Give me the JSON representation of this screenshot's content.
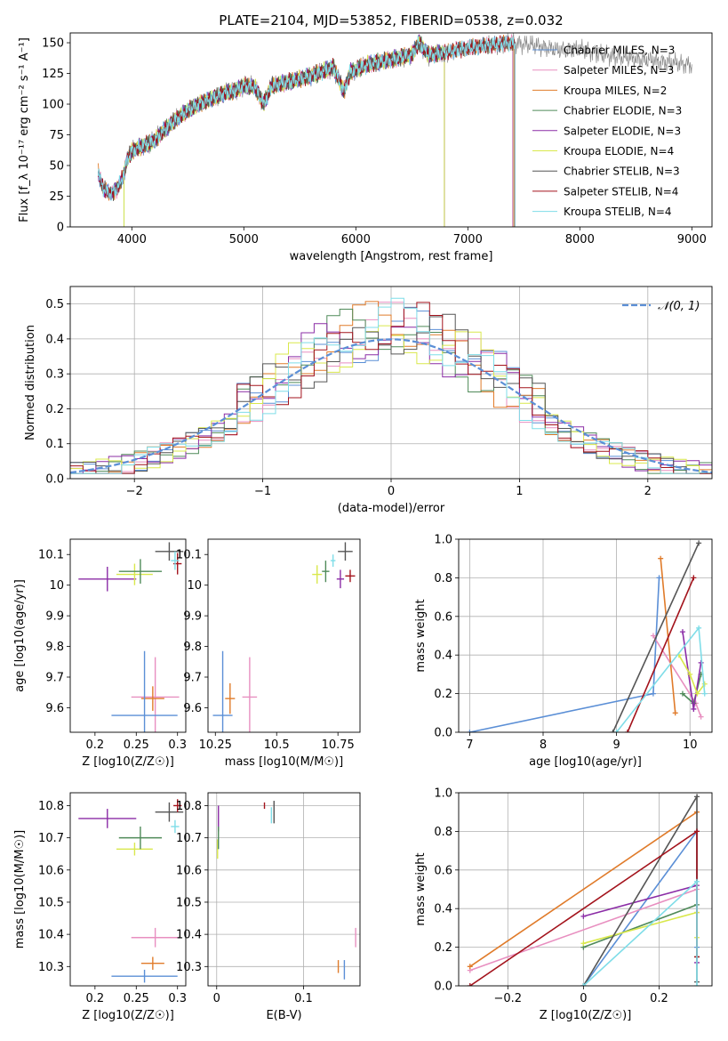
{
  "chart_data": [
    {
      "id": "spectrum",
      "type": "line",
      "title": "PLATE=2104, MJD=53852, FIBERID=0538, z=0.032",
      "xlabel": "wavelength [Angstrom, rest frame]",
      "ylabel": "Flux [f_λ 10⁻¹⁷ erg cm⁻² s⁻¹ A⁻¹]",
      "xlim": [
        3450,
        9180
      ],
      "ylim": [
        0,
        158
      ],
      "xticks": [
        4000,
        5000,
        6000,
        7000,
        8000,
        9000
      ],
      "yticks": [
        0,
        25,
        50,
        75,
        100,
        125,
        150
      ],
      "grid": false,
      "legend_position": "top-right",
      "data_envelope": [
        [
          3700,
          45
        ],
        [
          3740,
          32
        ],
        [
          3800,
          27
        ],
        [
          3860,
          30
        ],
        [
          3900,
          36
        ],
        [
          3930,
          44
        ],
        [
          3960,
          55
        ],
        [
          4000,
          62
        ],
        [
          4100,
          66
        ],
        [
          4200,
          70
        ],
        [
          4300,
          80
        ],
        [
          4400,
          88
        ],
        [
          4500,
          95
        ],
        [
          4600,
          100
        ],
        [
          4700,
          104
        ],
        [
          4800,
          108
        ],
        [
          4861,
          110
        ],
        [
          4900,
          110
        ],
        [
          5000,
          115
        ],
        [
          5100,
          114
        ],
        [
          5175,
          100
        ],
        [
          5250,
          115
        ],
        [
          5400,
          118
        ],
        [
          5600,
          123
        ],
        [
          5800,
          130
        ],
        [
          5893,
          110
        ],
        [
          5950,
          126
        ],
        [
          6100,
          132
        ],
        [
          6300,
          136
        ],
        [
          6500,
          140
        ],
        [
          6563,
          150
        ],
        [
          6650,
          140
        ],
        [
          6800,
          142
        ],
        [
          7000,
          146
        ],
        [
          7200,
          148
        ],
        [
          7400,
          150
        ],
        [
          7600,
          148
        ],
        [
          7800,
          144
        ],
        [
          8000,
          145
        ],
        [
          8200,
          140
        ],
        [
          8400,
          138
        ],
        [
          8600,
          136
        ],
        [
          8800,
          134
        ],
        [
          9000,
          132
        ]
      ],
      "series": [
        {
          "name": "Chabrier MILES, N_SSP=3",
          "color": "#5b8fd6",
          "xmax": 7400
        },
        {
          "name": "Salpeter MILES, N_SSP=3",
          "color": "#e88fc0",
          "xmax": 7400
        },
        {
          "name": "Kroupa MILES, N_SSP=2",
          "color": "#e07b2a",
          "xmax": 7410
        },
        {
          "name": "Chabrier ELODIE, N_SSP=3",
          "color": "#4f8a59",
          "xmax": 6790
        },
        {
          "name": "Salpeter ELODIE, N_SSP=3",
          "color": "#8b2ca6",
          "xmax": 6790
        },
        {
          "name": "Kroupa ELODIE, N_SSP=4",
          "color": "#d9e84c",
          "xmax": 6790
        },
        {
          "name": "Chabrier STELIB, N_SSP=3",
          "color": "#555555",
          "xmax": 7420
        },
        {
          "name": "Salpeter STELIB, N_SSP=4",
          "color": "#a3131c",
          "xmax": 7420
        },
        {
          "name": "Kroupa STELIB, N_SSP=4",
          "color": "#7fdde8",
          "xmax": 7420
        }
      ]
    },
    {
      "id": "residuals",
      "type": "histogram",
      "xlabel": "(data-model)/error",
      "ylabel": "Normed distribution",
      "xlim": [
        -2.5,
        2.5
      ],
      "ylim": [
        0,
        0.55
      ],
      "xticks": [
        -2,
        -1,
        0,
        1,
        2
      ],
      "yticks": [
        0.0,
        0.1,
        0.2,
        0.3,
        0.4,
        0.5
      ],
      "grid": true,
      "bin_width": 0.1,
      "legend": "𝒩(0, 1)",
      "legend_position": "top-right",
      "reference_curve": {
        "name": "N(0,1)",
        "mean": 0,
        "sigma": 1,
        "color": "#5b8fd6"
      },
      "histogram_series_colors": [
        "#5b8fd6",
        "#e88fc0",
        "#e07b2a",
        "#4f8a59",
        "#8b2ca6",
        "#d9e84c",
        "#555555",
        "#a3131c",
        "#7fdde8"
      ]
    },
    {
      "id": "age-vs-Z",
      "type": "scatter",
      "xlabel": "Z [log10(Z/Z☉)]",
      "ylabel": "age [log10(age/yr)]",
      "xlim": [
        0.17,
        0.31
      ],
      "ylim": [
        9.52,
        10.15
      ],
      "xticks": [
        0.2,
        0.25,
        0.3
      ],
      "yticks": [
        9.6,
        9.7,
        9.8,
        9.9,
        10.0,
        10.1
      ],
      "grid": false,
      "points": [
        {
          "x": 0.215,
          "y": 10.02,
          "xerr": 0.035,
          "yerr": 0.04,
          "color": "#8b2ca6"
        },
        {
          "x": 0.248,
          "y": 10.035,
          "xerr": 0.022,
          "yerr": 0.035,
          "color": "#d9e84c"
        },
        {
          "x": 0.255,
          "y": 10.045,
          "xerr": 0.026,
          "yerr": 0.04,
          "color": "#4f8a59"
        },
        {
          "x": 0.29,
          "y": 10.11,
          "xerr": 0.017,
          "yerr": 0.03,
          "color": "#555555"
        },
        {
          "x": 0.3,
          "y": 10.07,
          "xerr": 0.005,
          "yerr": 0.035,
          "color": "#a3131c"
        },
        {
          "x": 0.297,
          "y": 10.08,
          "xerr": 0.005,
          "yerr": 0.03,
          "color": "#7fdde8"
        },
        {
          "x": 0.273,
          "y": 9.635,
          "xerr": 0.029,
          "yerr": 0.13,
          "color": "#e88fc0"
        },
        {
          "x": 0.27,
          "y": 9.63,
          "xerr": 0.014,
          "yerr": 0.04,
          "color": "#e07b2a"
        },
        {
          "x": 0.26,
          "y": 9.575,
          "xerr": 0.04,
          "yerr": 0.21,
          "color": "#5b8fd6"
        }
      ]
    },
    {
      "id": "age-vs-mass",
      "type": "scatter",
      "xlabel": "mass [log10(M/M☉)]",
      "ylabel": "",
      "xlim": [
        10.22,
        10.84
      ],
      "ylim": [
        9.52,
        10.15
      ],
      "xticks": [
        10.25,
        10.5,
        10.75
      ],
      "yticks": [
        9.6,
        9.7,
        9.8,
        9.9,
        10.0,
        10.1
      ],
      "grid": false,
      "points": [
        {
          "x": 10.665,
          "y": 10.035,
          "xerr": 0.02,
          "yerr": 0.03,
          "color": "#d9e84c"
        },
        {
          "x": 10.7,
          "y": 10.045,
          "xerr": 0.015,
          "yerr": 0.035,
          "color": "#4f8a59"
        },
        {
          "x": 10.76,
          "y": 10.02,
          "xerr": 0.015,
          "yerr": 0.03,
          "color": "#8b2ca6"
        },
        {
          "x": 10.78,
          "y": 10.11,
          "xerr": 0.03,
          "yerr": 0.03,
          "color": "#555555"
        },
        {
          "x": 10.8,
          "y": 10.03,
          "xerr": 0.02,
          "yerr": 0.02,
          "color": "#a3131c"
        },
        {
          "x": 10.73,
          "y": 10.08,
          "xerr": 0.01,
          "yerr": 0.02,
          "color": "#7fdde8"
        },
        {
          "x": 10.39,
          "y": 9.635,
          "xerr": 0.03,
          "yerr": 0.13,
          "color": "#e88fc0"
        },
        {
          "x": 10.31,
          "y": 9.63,
          "xerr": 0.02,
          "yerr": 0.05,
          "color": "#e07b2a"
        },
        {
          "x": 10.28,
          "y": 9.575,
          "xerr": 0.04,
          "yerr": 0.21,
          "color": "#5b8fd6"
        }
      ]
    },
    {
      "id": "massweight-vs-age",
      "type": "line",
      "xlabel": "age [log10(age/yr)]",
      "ylabel": "mass weight",
      "xlim": [
        6.85,
        10.3
      ],
      "ylim": [
        0,
        1.0
      ],
      "xticks": [
        7,
        8,
        9,
        10
      ],
      "yticks": [
        0.0,
        0.2,
        0.4,
        0.6,
        0.8,
        1.0
      ],
      "grid": true,
      "series": [
        {
          "name": "Chabrier MILES",
          "color": "#5b8fd6",
          "x": [
            7.0,
            9.5,
            9.58
          ],
          "y": [
            0.0,
            0.2,
            0.8
          ]
        },
        {
          "name": "Salpeter MILES",
          "color": "#e88fc0",
          "x": [
            9.5,
            10.08,
            10.15
          ],
          "y": [
            0.5,
            0.15,
            0.08
          ]
        },
        {
          "name": "Kroupa MILES",
          "color": "#e07b2a",
          "x": [
            9.6,
            9.8
          ],
          "y": [
            0.9,
            0.1
          ]
        },
        {
          "name": "Chabrier ELODIE",
          "color": "#4f8a59",
          "x": [
            9.9,
            10.05,
            10.15
          ],
          "y": [
            0.2,
            0.15,
            0.3
          ]
        },
        {
          "name": "Salpeter ELODIE",
          "color": "#8b2ca6",
          "x": [
            9.9,
            10.05,
            10.15
          ],
          "y": [
            0.52,
            0.12,
            0.36
          ]
        },
        {
          "name": "Kroupa ELODIE",
          "color": "#d9e84c",
          "x": [
            9.85,
            10.0,
            10.1,
            10.2
          ],
          "y": [
            0.4,
            0.3,
            0.2,
            0.25
          ]
        },
        {
          "name": "Chabrier STELIB",
          "color": "#555555",
          "x": [
            8.95,
            10.12
          ],
          "y": [
            0.0,
            0.98
          ]
        },
        {
          "name": "Salpeter STELIB",
          "color": "#a3131c",
          "x": [
            9.15,
            10.05
          ],
          "y": [
            0.0,
            0.8
          ]
        },
        {
          "name": "Kroupa STELIB",
          "color": "#7fdde8",
          "x": [
            9.0,
            10.12,
            10.2
          ],
          "y": [
            0.0,
            0.54,
            0.2
          ]
        }
      ]
    },
    {
      "id": "mass-vs-Z",
      "type": "scatter",
      "xlabel": "Z [log10(Z/Z☉)]",
      "ylabel": "mass [log10(M/M☉)]",
      "xlim": [
        0.17,
        0.31
      ],
      "ylim": [
        10.24,
        10.84
      ],
      "xticks": [
        0.2,
        0.25,
        0.3
      ],
      "yticks": [
        10.3,
        10.4,
        10.5,
        10.6,
        10.7,
        10.8
      ],
      "grid": false,
      "points": [
        {
          "x": 0.215,
          "y": 10.76,
          "xerr": 0.035,
          "yerr": 0.03,
          "color": "#8b2ca6"
        },
        {
          "x": 0.248,
          "y": 10.665,
          "xerr": 0.022,
          "yerr": 0.02,
          "color": "#d9e84c"
        },
        {
          "x": 0.255,
          "y": 10.7,
          "xerr": 0.026,
          "yerr": 0.035,
          "color": "#4f8a59"
        },
        {
          "x": 0.29,
          "y": 10.78,
          "xerr": 0.017,
          "yerr": 0.03,
          "color": "#555555"
        },
        {
          "x": 0.3,
          "y": 10.8,
          "xerr": 0.005,
          "yerr": 0.02,
          "color": "#a3131c"
        },
        {
          "x": 0.297,
          "y": 10.735,
          "xerr": 0.005,
          "yerr": 0.02,
          "color": "#7fdde8"
        },
        {
          "x": 0.273,
          "y": 10.39,
          "xerr": 0.029,
          "yerr": 0.03,
          "color": "#e88fc0"
        },
        {
          "x": 0.27,
          "y": 10.31,
          "xerr": 0.014,
          "yerr": 0.02,
          "color": "#e07b2a"
        },
        {
          "x": 0.26,
          "y": 10.27,
          "xerr": 0.04,
          "yerr": 0.02,
          "color": "#5b8fd6"
        }
      ]
    },
    {
      "id": "mass-vs-EBV",
      "type": "scatter",
      "xlabel": "E(B-V)",
      "ylabel": "",
      "xlim": [
        -0.01,
        0.165
      ],
      "ylim": [
        10.24,
        10.84
      ],
      "xticks": [
        0.0,
        0.1
      ],
      "yticks": [
        10.3,
        10.4,
        10.5,
        10.6,
        10.7,
        10.8
      ],
      "grid": true,
      "points": [
        {
          "x": 0.002,
          "y": 10.76,
          "yerr": 0.04,
          "color": "#8b2ca6"
        },
        {
          "x": 0.001,
          "y": 10.665,
          "yerr": 0.03,
          "color": "#d9e84c"
        },
        {
          "x": 0.002,
          "y": 10.7,
          "yerr": 0.035,
          "color": "#4f8a59"
        },
        {
          "x": 0.066,
          "y": 10.78,
          "yerr": 0.035,
          "color": "#555555"
        },
        {
          "x": 0.055,
          "y": 10.8,
          "yerr": 0.01,
          "color": "#a3131c"
        },
        {
          "x": 0.063,
          "y": 10.77,
          "yerr": 0.025,
          "color": "#7fdde8"
        },
        {
          "x": 0.16,
          "y": 10.39,
          "yerr": 0.03,
          "color": "#e88fc0"
        },
        {
          "x": 0.14,
          "y": 10.3,
          "yerr": 0.02,
          "color": "#e07b2a"
        },
        {
          "x": 0.147,
          "y": 10.29,
          "yerr": 0.03,
          "color": "#5b8fd6"
        }
      ]
    },
    {
      "id": "massweight-vs-Z",
      "type": "line",
      "xlabel": "Z [log10(Z/Z☉)]",
      "ylabel": "mass weight",
      "xlim": [
        -0.33,
        0.34
      ],
      "ylim": [
        0,
        1.0
      ],
      "xticks": [
        -0.2,
        0.0,
        0.2
      ],
      "yticks": [
        0.0,
        0.2,
        0.4,
        0.6,
        0.8,
        1.0
      ],
      "grid": true,
      "series": [
        {
          "name": "Chabrier MILES",
          "color": "#5b8fd6",
          "x": [
            0.0,
            0.3,
            0.3
          ],
          "y": [
            0.0,
            0.8,
            0.2
          ]
        },
        {
          "name": "Salpeter MILES",
          "color": "#e88fc0",
          "x": [
            -0.3,
            0.3,
            0.3
          ],
          "y": [
            0.08,
            0.5,
            0.38
          ]
        },
        {
          "name": "Kroupa MILES",
          "color": "#e07b2a",
          "x": [
            -0.3,
            0.3
          ],
          "y": [
            0.1,
            0.9
          ]
        },
        {
          "name": "Chabrier ELODIE",
          "color": "#4f8a59",
          "x": [
            0.0,
            0.3,
            0.3
          ],
          "y": [
            0.2,
            0.42,
            0.15
          ]
        },
        {
          "name": "Salpeter ELODIE",
          "color": "#8b2ca6",
          "x": [
            0.0,
            0.3,
            0.3
          ],
          "y": [
            0.36,
            0.52,
            0.12
          ]
        },
        {
          "name": "Kroupa ELODIE",
          "color": "#d9e84c",
          "x": [
            0.0,
            0.3,
            0.3
          ],
          "y": [
            0.22,
            0.38,
            0.25
          ]
        },
        {
          "name": "Chabrier STELIB",
          "color": "#555555",
          "x": [
            0.0,
            0.3,
            0.3
          ],
          "y": [
            0.0,
            0.98,
            0.02
          ]
        },
        {
          "name": "Salpeter STELIB",
          "color": "#a3131c",
          "x": [
            -0.3,
            0.3,
            0.3
          ],
          "y": [
            0.0,
            0.8,
            0.15
          ]
        },
        {
          "name": "Kroupa STELIB",
          "color": "#7fdde8",
          "x": [
            0.0,
            0.3,
            0.3
          ],
          "y": [
            0.0,
            0.54,
            0.0
          ]
        }
      ]
    }
  ]
}
